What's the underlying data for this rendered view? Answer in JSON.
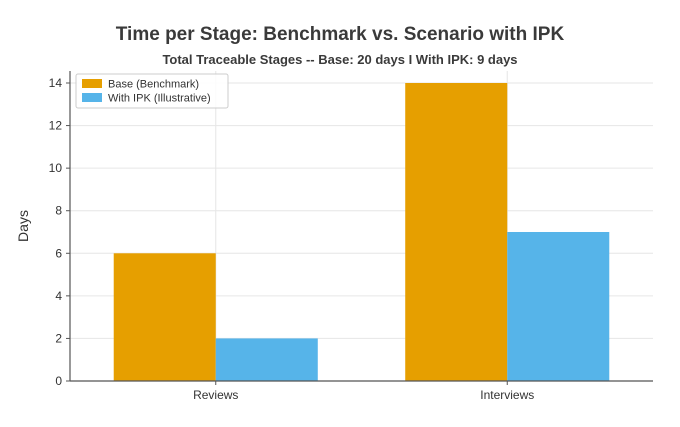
{
  "chart_data": {
    "type": "bar",
    "title": "Time per Stage: Benchmark vs. Scenario with IPK",
    "subtitle": "Total Traceable Stages --  Base: 20 days  I  With IPK: 9 days",
    "xlabel": "",
    "ylabel": "Days",
    "categories": [
      "Reviews",
      "Interviews"
    ],
    "series": [
      {
        "name": "Base (Benchmark)",
        "values": [
          6,
          14
        ],
        "color": "#E69F00"
      },
      {
        "name": "With IPK (Illustrative)",
        "values": [
          2,
          7
        ],
        "color": "#56B4E9"
      }
    ],
    "ylim": [
      0,
      14
    ],
    "yticks": [
      0,
      2,
      4,
      6,
      8,
      10,
      12,
      14
    ],
    "grid": true,
    "legend_position": "top-left"
  }
}
